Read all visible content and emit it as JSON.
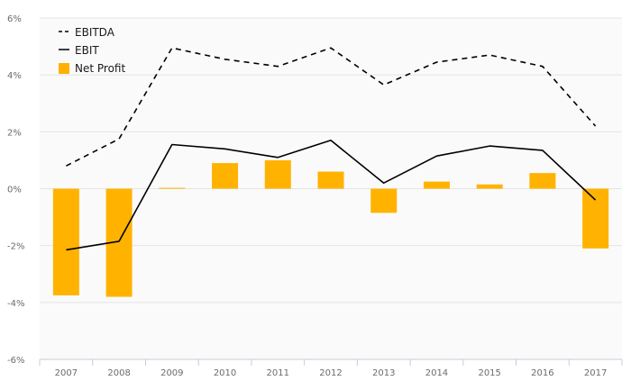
{
  "chart_data": {
    "type": "bar",
    "categories": [
      "2007",
      "2008",
      "2009",
      "2010",
      "2011",
      "2012",
      "2013",
      "2014",
      "2015",
      "2016",
      "2017"
    ],
    "y_ticks": [
      "6%",
      "4%",
      "2%",
      "0%",
      "-2%",
      "-4%",
      "-6%"
    ],
    "ylim": [
      -6,
      6
    ],
    "y_unit": "%",
    "grid": true,
    "legend_position": "top-left",
    "series": [
      {
        "name": "EBITDA",
        "type": "line",
        "style": "dashed",
        "color": "#000000",
        "values": [
          0.8,
          1.75,
          4.95,
          4.55,
          4.3,
          4.95,
          3.65,
          4.45,
          4.7,
          4.3,
          2.2
        ]
      },
      {
        "name": "EBIT",
        "type": "line",
        "style": "solid",
        "color": "#000000",
        "values": [
          -2.15,
          -1.85,
          1.55,
          1.4,
          1.1,
          1.7,
          0.2,
          1.15,
          1.5,
          1.35,
          -0.4
        ]
      },
      {
        "name": "Net Profit",
        "type": "bar",
        "color": "#FFB300",
        "values": [
          -3.75,
          -3.8,
          0.03,
          0.9,
          1.0,
          0.6,
          -0.85,
          0.25,
          0.15,
          0.55,
          -2.1
        ]
      }
    ]
  }
}
